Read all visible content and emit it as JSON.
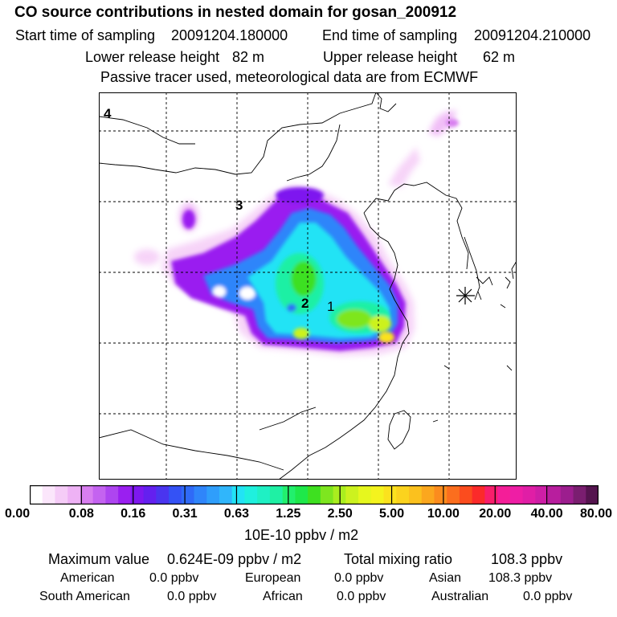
{
  "header": {
    "title": "CO  source contributions in nested domain for gosan_200912",
    "start_label": "Start time of sampling",
    "start_value": "20091204.180000",
    "end_label": "End time of sampling",
    "end_value": "20091204.210000",
    "lower_label": "Lower release height",
    "lower_value": "82 m",
    "upper_label": "Upper release height",
    "upper_value": "62 m",
    "tracer_note": "Passive tracer used, meteorological data are from ECMWF"
  },
  "map": {
    "panel_label": "4",
    "site_labels": [
      "1",
      "2",
      "3"
    ],
    "receptor_marker": "asterisk-icon"
  },
  "colorbar": {
    "tick_labels": [
      "0.00",
      "0.08",
      "0.16",
      "0.31",
      "0.63",
      "1.25",
      "2.50",
      "5.00",
      "10.00",
      "20.00",
      "40.00",
      "80.00"
    ],
    "units": "10E-10 ppbv / m2",
    "colors": [
      "#ffffff",
      "#fbe6fb",
      "#f5ccf7",
      "#eeb2f5",
      "#d87ef0",
      "#c463f0",
      "#ae45f0",
      "#9a1ff0",
      "#7e18ef",
      "#6420ef",
      "#4a35ef",
      "#3452f5",
      "#2f6af7",
      "#2f85fa",
      "#2f9efb",
      "#30b6fb",
      "#22e3f5",
      "#1ff0de",
      "#1ff0c4",
      "#1ff0a4",
      "#22ef6d",
      "#1ee84a",
      "#3ee020",
      "#7ee61f",
      "#aaee1f",
      "#ccf21f",
      "#e6f71e",
      "#f4f31e",
      "#fbe21e",
      "#fbd31e",
      "#fbc11e",
      "#fba71e",
      "#fb8c1e",
      "#fb6e1e",
      "#fb4c1e",
      "#fb2a2a",
      "#f81e6b",
      "#f41e98",
      "#ee1ea5",
      "#e01ea6",
      "#ce1ea6",
      "#b81e9e",
      "#9c1e8e",
      "#7a1e70",
      "#55144f"
    ]
  },
  "stats": {
    "max_label": "Maximum value",
    "max_value": "0.624E-09 ppbv / m2",
    "total_label": "Total mixing ratio",
    "total_value": "108.3 ppbv",
    "regions": [
      {
        "name": "American",
        "value": "0.0 ppbv"
      },
      {
        "name": "European",
        "value": "0.0 ppbv"
      },
      {
        "name": "Asian",
        "value": "108.3 ppbv"
      },
      {
        "name": "South American",
        "value": "0.0 ppbv"
      },
      {
        "name": "African",
        "value": "0.0 ppbv"
      },
      {
        "name": "Australian",
        "value": "0.0 ppbv"
      }
    ]
  }
}
